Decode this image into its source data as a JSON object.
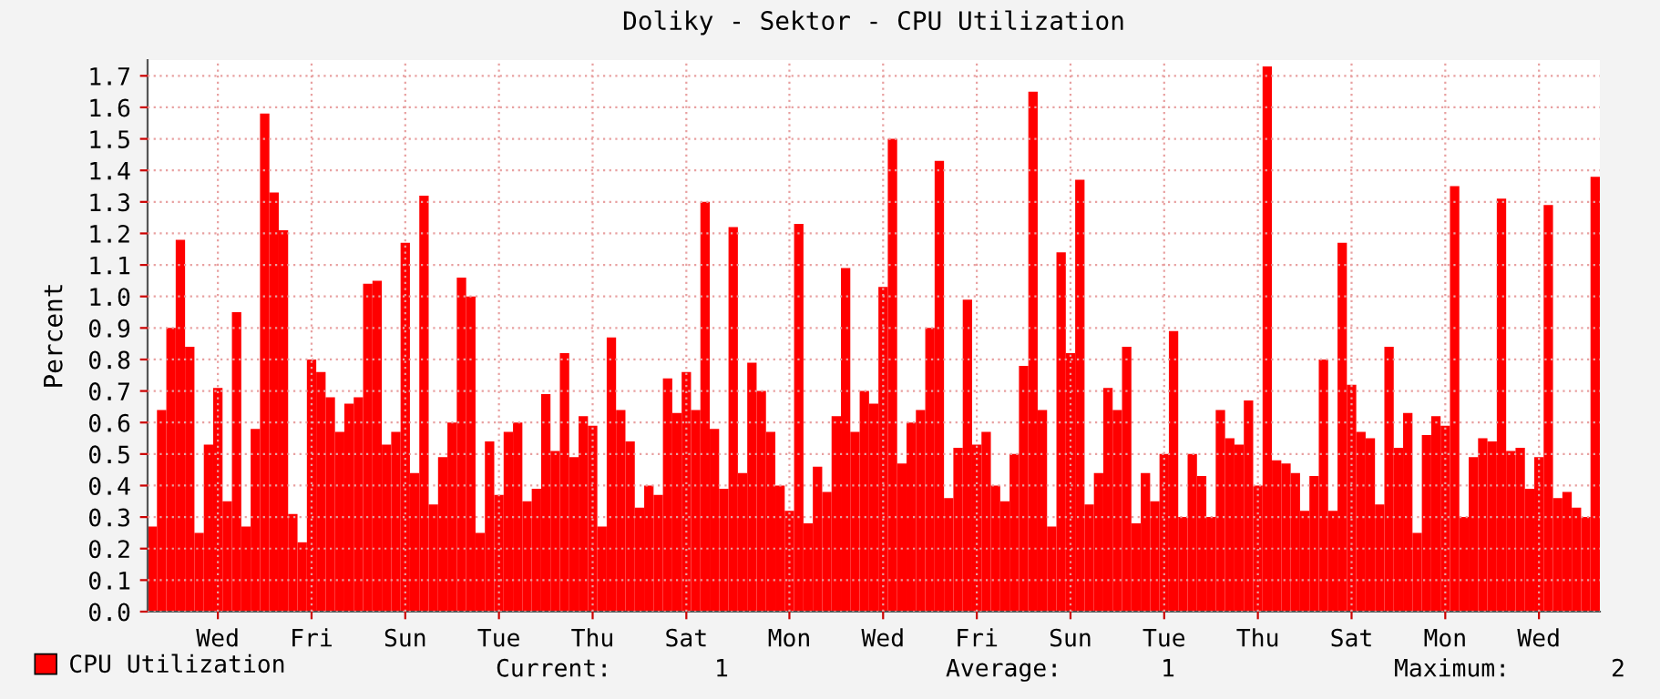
{
  "chart_data": {
    "type": "bar",
    "title": "Doliky - Sektor - CPU Utilization",
    "ylabel": "Percent",
    "categories": [
      null,
      null,
      null,
      null,
      null,
      null,
      null,
      "Wed",
      null,
      null,
      null,
      null,
      null,
      null,
      null,
      null,
      null,
      "Fri",
      null,
      null,
      null,
      null,
      null,
      null,
      null,
      null,
      null,
      "Sun",
      null,
      null,
      null,
      null,
      null,
      null,
      null,
      null,
      null,
      "Tue",
      null,
      null,
      null,
      null,
      null,
      null,
      null,
      null,
      null,
      "Thu",
      null,
      null,
      null,
      null,
      null,
      null,
      null,
      null,
      null,
      "Sat",
      null,
      null,
      null,
      null,
      null,
      null,
      null,
      null,
      null,
      null,
      "Mon",
      null,
      null,
      null,
      null,
      null,
      null,
      null,
      null,
      null,
      "Wed",
      null,
      null,
      null,
      null,
      null,
      null,
      null,
      null,
      null,
      "Fri",
      null,
      null,
      null,
      null,
      null,
      null,
      null,
      null,
      null,
      "Sun",
      null,
      null,
      null,
      null,
      null,
      null,
      null,
      null,
      null,
      "Tue",
      null,
      null,
      null,
      null,
      null,
      null,
      null,
      null,
      null,
      "Thu",
      null,
      null,
      null,
      null,
      null,
      null,
      null,
      null,
      null,
      "Sat",
      null,
      null,
      null,
      null,
      null,
      null,
      null,
      null,
      null,
      "Mon",
      null,
      null,
      null,
      null,
      null,
      null,
      null,
      null,
      null,
      "Wed",
      null,
      null,
      null,
      null,
      null,
      null
    ],
    "series": [
      {
        "name": "CPU Utilization",
        "color": "#ff0000",
        "values": [
          0.27,
          0.64,
          0.9,
          1.18,
          0.84,
          0.25,
          0.53,
          0.71,
          0.35,
          0.95,
          0.27,
          0.58,
          1.58,
          1.33,
          1.21,
          0.31,
          0.22,
          0.8,
          0.76,
          0.68,
          0.57,
          0.66,
          0.68,
          1.04,
          1.05,
          0.53,
          0.57,
          1.17,
          0.44,
          1.32,
          0.34,
          0.49,
          0.6,
          1.06,
          1.0,
          0.25,
          0.54,
          0.37,
          0.57,
          0.6,
          0.35,
          0.39,
          0.69,
          0.51,
          0.82,
          0.49,
          0.62,
          0.59,
          0.27,
          0.87,
          0.64,
          0.54,
          0.33,
          0.4,
          0.37,
          0.74,
          0.63,
          0.76,
          0.64,
          1.3,
          0.58,
          0.39,
          1.22,
          0.44,
          0.79,
          0.7,
          0.57,
          0.4,
          0.32,
          1.23,
          0.28,
          0.46,
          0.38,
          0.62,
          1.09,
          0.57,
          0.7,
          0.66,
          1.03,
          1.5,
          0.47,
          0.6,
          0.64,
          0.9,
          1.43,
          0.36,
          0.52,
          0.99,
          0.53,
          0.57,
          0.4,
          0.35,
          0.5,
          0.78,
          1.65,
          0.64,
          0.27,
          1.14,
          0.82,
          1.37,
          0.34,
          0.44,
          0.71,
          0.64,
          0.84,
          0.28,
          0.44,
          0.35,
          0.5,
          0.89,
          0.3,
          0.5,
          0.43,
          0.3,
          0.64,
          0.55,
          0.53,
          0.67,
          0.4,
          1.73,
          0.48,
          0.47,
          0.44,
          0.32,
          0.43,
          0.8,
          0.32,
          1.17,
          0.72,
          0.57,
          0.55,
          0.34,
          0.84,
          0.52,
          0.63,
          0.25,
          0.56,
          0.62,
          0.59,
          1.35,
          0.3,
          0.49,
          0.55,
          0.54,
          1.31,
          0.51,
          0.52,
          0.39,
          0.49,
          1.29,
          0.36,
          0.38,
          0.33,
          0.3,
          1.38
        ]
      }
    ],
    "ylim": [
      0,
      1.75
    ],
    "yticks": [
      {
        "value": 0,
        "label": "0.0"
      },
      0.1,
      0.2,
      0.3,
      0.4,
      0.5,
      0.6,
      0.7,
      0.8,
      0.9,
      {
        "value": 1,
        "label": "1.0"
      },
      1.1,
      1.2,
      1.3,
      1.4,
      1.5,
      1.6,
      1.7
    ],
    "grid": true,
    "legend": "bottom left",
    "annotations": [
      "Current:",
      "1",
      "Average:",
      "1",
      "Maximum:",
      "2"
    ]
  }
}
